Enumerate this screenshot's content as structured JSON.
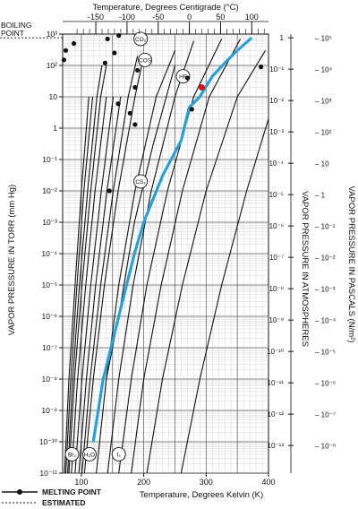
{
  "chart_data": {
    "type": "line",
    "title": "",
    "top_axis": {
      "label": "Temperature, Degrees Centigrade (°C)",
      "ticks": [
        -150,
        -100,
        -50,
        0,
        50,
        100
      ],
      "tick_labels": [
        "-150",
        "-100",
        "-50",
        "0",
        "50",
        "100"
      ]
    },
    "bottom_axis": {
      "label": "Temperature, Degrees Kelvin (K)",
      "ticks": [
        100,
        200,
        300,
        400
      ],
      "tick_labels": [
        "100",
        "200",
        "300",
        "400"
      ],
      "xlim": [
        70,
        400
      ]
    },
    "left_axis": {
      "label": "VAPOR PRESSURE IN TORR (mm Hg)",
      "scale": "log",
      "ylim": [
        1e-11,
        1000
      ],
      "ticks": [
        1000,
        100,
        10,
        1,
        0.1,
        0.01,
        0.001,
        0.0001,
        1e-05,
        1e-06,
        1e-07,
        1e-08,
        1e-09,
        1e-10,
        1e-11
      ],
      "tick_labels": [
        "10³",
        "10²",
        "10",
        "1",
        "10⁻¹",
        "10⁻²",
        "10⁻³",
        "10⁻⁴",
        "10⁻⁵",
        "10⁻⁶",
        "10⁻⁷",
        "10⁻⁸",
        "10⁻⁹",
        "10⁻¹⁰",
        "10⁻¹¹"
      ]
    },
    "right_axis_atm": {
      "label": "VAPOR PRESSURE IN ATMOSPHERES",
      "ticks": [
        1,
        0.1,
        0.01,
        0.001,
        0.0001,
        1e-05,
        1e-06,
        1e-07,
        1e-08,
        1e-09,
        1e-10,
        1e-11,
        1e-12,
        1e-13
      ],
      "tick_labels": [
        "1",
        "10⁻¹",
        "10⁻²",
        "10⁻³",
        "10⁻⁴",
        "10⁻⁵",
        "10⁻⁶",
        "10⁻⁷",
        "10⁻⁸",
        "10⁻⁹",
        "10⁻¹⁰",
        "10⁻¹¹",
        "10⁻¹²",
        "10⁻¹³"
      ]
    },
    "right_axis_pa": {
      "label": "VAPOR PRESSURE IN PASCALS (N/m²)",
      "ticks": [
        100000.0,
        10000.0,
        1000,
        100,
        10,
        1,
        0.1,
        0.01,
        0.001,
        0.0001,
        1e-05,
        1e-06,
        1e-07,
        1e-08
      ],
      "tick_labels": [
        "– 10⁵",
        "– 10⁴",
        "– 10³",
        "– 10²",
        "– 10",
        "– 1",
        "– 10⁻¹",
        "– 10⁻²",
        "– 10⁻³",
        "– 10⁻⁴",
        "– 10⁻⁵",
        "– 10⁻⁶",
        "– 10⁻⁷",
        "– 10⁻⁸"
      ]
    },
    "boiling_point_label": "BOILING POINT",
    "boiling_point_pressure_torr": 760,
    "legend": {
      "placement": "bottom-left",
      "melting_point": "MELTING POINT",
      "estimated": "ESTIMATED"
    },
    "series": [
      {
        "id": "s1",
        "x": [
          73,
          80,
          90,
          100,
          112
        ],
        "y": [
          1e-11,
          1e-08,
          1e-05,
          0.01,
          10
        ]
      },
      {
        "id": "s2",
        "x": [
          75,
          83,
          93,
          104,
          118
        ],
        "y": [
          1e-11,
          1e-08,
          1e-05,
          0.01,
          10
        ]
      },
      {
        "id": "s3",
        "x": [
          78,
          86,
          97,
          110,
          125,
          133
        ],
        "y": [
          1e-11,
          1e-08,
          1e-05,
          0.01,
          10,
          100
        ]
      },
      {
        "id": "s4",
        "x": [
          80,
          89,
          101,
          115,
          131,
          140
        ],
        "y": [
          1e-11,
          1e-08,
          1e-05,
          0.01,
          10,
          100
        ]
      },
      {
        "id": "s5",
        "x": [
          84,
          94,
          107,
          122,
          140
        ],
        "y": [
          1e-11,
          1e-08,
          1e-05,
          0.01,
          10
        ]
      },
      {
        "id": "s6",
        "x": [
          90,
          101,
          115,
          132,
          151
        ],
        "y": [
          1e-11,
          1e-08,
          1e-05,
          0.01,
          10
        ]
      },
      {
        "id": "s7",
        "x": [
          96,
          108,
          123,
          141,
          163
        ],
        "y": [
          1e-11,
          1e-08,
          1e-05,
          0.01,
          10
        ]
      },
      {
        "id": "s8",
        "x": [
          101,
          114,
          131,
          151,
          175,
          190
        ],
        "y": [
          1e-11,
          1e-08,
          1e-05,
          0.01,
          10,
          200
        ]
      },
      {
        "id": "s9",
        "x": [
          105,
          119,
          137,
          159,
          186,
          200
        ],
        "y": [
          1e-11,
          1e-08,
          1e-05,
          0.01,
          10,
          200
        ]
      },
      {
        "id": "s10",
        "x": [
          140,
          160,
          185,
          215,
          250
        ],
        "y": [
          1e-08,
          1e-06,
          0.001,
          0.3,
          100
        ]
      },
      {
        "id": "s11",
        "x": [
          124,
          140,
          160,
          186,
          220,
          250
        ],
        "y": [
          1e-11,
          1e-08,
          1e-05,
          0.01,
          10,
          300
        ]
      },
      {
        "id": "s12",
        "x": [
          142,
          160,
          183,
          212,
          250,
          280
        ],
        "y": [
          1e-11,
          1e-08,
          1e-05,
          0.01,
          10,
          600
        ]
      },
      {
        "id": "s13",
        "x": [
          160,
          180,
          205,
          238,
          280,
          325
        ],
        "y": [
          1e-11,
          1e-08,
          1e-05,
          0.01,
          10,
          700
        ]
      },
      {
        "id": "s14",
        "x": [
          180,
          200,
          228,
          262,
          305,
          355
        ],
        "y": [
          1e-11,
          1e-08,
          1e-05,
          0.01,
          10,
          700
        ]
      },
      {
        "id": "s15",
        "x": [
          205,
          230,
          262,
          300,
          350,
          395
        ],
        "y": [
          1e-11,
          1e-08,
          1e-05,
          0.01,
          10,
          300
        ]
      },
      {
        "id": "s16",
        "x": [
          260,
          290,
          325,
          365,
          400
        ],
        "y": [
          1e-11,
          1e-08,
          1e-05,
          0.01,
          2
        ]
      }
    ],
    "highlighted_series": {
      "name": "H₂O",
      "color": "#2aa0d4",
      "x": [
        119,
        135,
        160,
        185,
        200,
        230,
        260,
        273,
        290,
        310,
        330,
        350,
        373
      ],
      "y": [
        1e-10,
        1e-08,
        1e-06,
        0.0001,
        0.001,
        0.03,
        0.4,
        4.6,
        10,
        45,
        120,
        300,
        760
      ]
    },
    "labels": [
      {
        "text": "CO₂",
        "x": 195,
        "y": 700
      },
      {
        "text": "COS",
        "x": 202,
        "y": 150
      },
      {
        "text": "HF",
        "x": 263,
        "y": 45
      },
      {
        "text": "CS₂",
        "x": 195,
        "y": 0.02
      },
      {
        "text": "Br₂",
        "x": 85,
        "y": 4e-11
      },
      {
        "text": "H₂O",
        "x": 113,
        "y": 4e-11
      },
      {
        "text": "I₂",
        "x": 160,
        "y": 4e-11
      }
    ],
    "melting_points": [
      {
        "x": 75,
        "y": 300
      },
      {
        "x": 72,
        "y": 150
      },
      {
        "x": 88,
        "y": 500
      },
      {
        "x": 142,
        "y": 700
      },
      {
        "x": 160,
        "y": 900
      },
      {
        "x": 153,
        "y": 250
      },
      {
        "x": 138,
        "y": 120
      },
      {
        "x": 190,
        "y": 70
      },
      {
        "x": 186,
        "y": 20
      },
      {
        "x": 159,
        "y": 6
      },
      {
        "x": 178,
        "y": 3
      },
      {
        "x": 186,
        "y": 1.3
      },
      {
        "x": 270,
        "y": 40
      },
      {
        "x": 277,
        "y": 4
      },
      {
        "x": 388,
        "y": 90
      },
      {
        "x": 145,
        "y": 0.01
      }
    ],
    "special_point": {
      "x": 293,
      "y": 20,
      "color": "#e01010"
    },
    "grid": true
  }
}
